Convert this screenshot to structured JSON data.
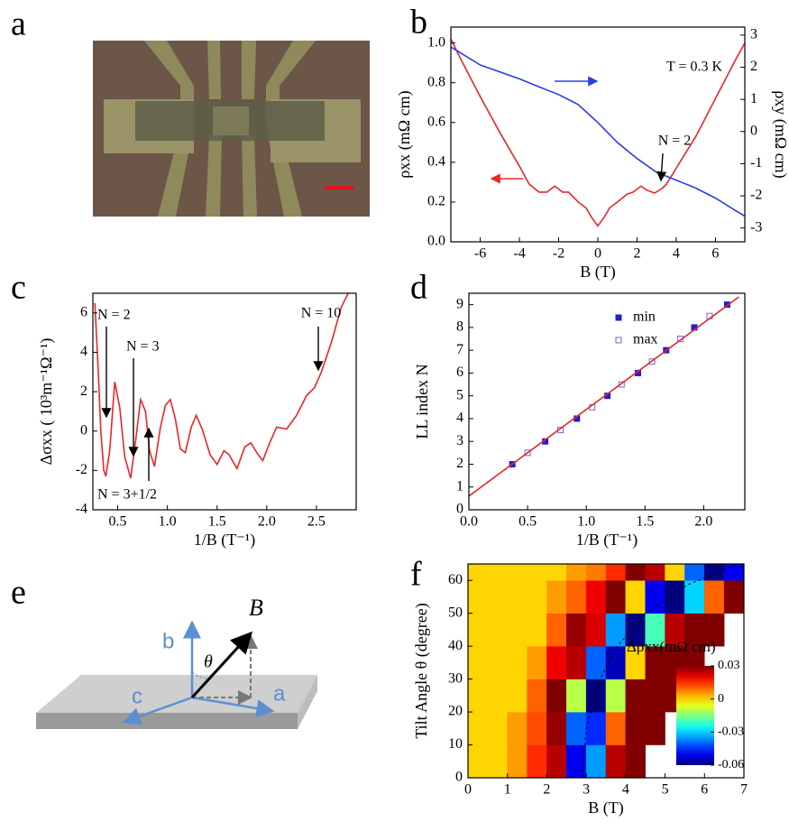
{
  "image_panel": {
    "panel": "a"
  },
  "diagram": {
    "panel": "e",
    "labels": {
      "b": "b",
      "B": "B",
      "theta": "θ",
      "c": "c",
      "a": "a"
    }
  },
  "chart_data": [
    {
      "type": "line",
      "panel": "b",
      "x_label": "B (T)",
      "y_label": "ρxx (mΩ cm)",
      "y2_label": "ρxy (mΩ cm)",
      "annotations": [
        "T = 0.3 K",
        "N = 2"
      ],
      "xlim": [
        -7.5,
        7.5
      ],
      "xticks": [
        -6,
        -4,
        -2,
        0,
        2,
        4,
        6
      ],
      "ylim": [
        0,
        1.08
      ],
      "yticks": [
        {
          "value": 0,
          "label": "0.0"
        },
        0.2,
        0.4,
        0.6,
        0.8,
        {
          "value": 1,
          "label": "1.0"
        }
      ],
      "y2lim": [
        -3.43,
        3.25
      ],
      "y2ticks": [
        -3,
        -2,
        -1,
        0,
        1,
        2,
        3
      ],
      "series": [
        {
          "color": "#e8262a",
          "x": [
            -7.5,
            -7,
            -6,
            -5,
            -4,
            -3.5,
            -3,
            -2.6,
            -2.2,
            -1.8,
            -1.5,
            -1,
            -0.6,
            -0.3,
            0,
            0.3,
            0.6,
            1,
            1.5,
            1.8,
            2.2,
            2.5,
            2.9,
            3.3,
            3.5,
            4,
            5,
            6,
            7,
            7.5
          ],
          "values": [
            1.02,
            0.92,
            0.73,
            0.55,
            0.38,
            0.29,
            0.25,
            0.25,
            0.28,
            0.25,
            0.25,
            0.2,
            0.17,
            0.12,
            0.08,
            0.12,
            0.17,
            0.2,
            0.24,
            0.25,
            0.28,
            0.26,
            0.245,
            0.27,
            0.29,
            0.37,
            0.53,
            0.72,
            0.91,
            1.0
          ]
        },
        {
          "color": "#2a3ee8",
          "axis": "y2",
          "x": [
            -7.5,
            -6,
            -4,
            -3,
            -2,
            -1,
            0,
            1,
            2,
            3,
            4,
            5,
            6,
            7,
            7.5
          ],
          "values": [
            2.63,
            2.07,
            1.64,
            1.39,
            1.15,
            0.84,
            0.28,
            -0.34,
            -0.84,
            -1.27,
            -1.51,
            -1.76,
            -2.07,
            -2.45,
            -2.63
          ]
        }
      ]
    },
    {
      "type": "line",
      "panel": "c",
      "x_label": "1/B (T⁻¹)",
      "y_label": "Δσxx ( 10³m⁻¹Ω⁻¹)",
      "annotations": [
        "N = 2",
        "N = 3",
        "N = 3+1/2",
        "N = 10"
      ],
      "xlim": [
        0.25,
        2.9
      ],
      "xticks": [
        0.5,
        {
          "value": 1,
          "label": "1.0"
        },
        1.5,
        {
          "value": 2,
          "label": "2.0"
        },
        2.5
      ],
      "ylim": [
        -4,
        7
      ],
      "yticks": [
        -4,
        -2,
        0,
        2,
        4,
        6
      ],
      "series": [
        {
          "color": "#e8262a",
          "x": [
            0.27,
            0.3,
            0.33,
            0.36,
            0.38,
            0.42,
            0.47,
            0.52,
            0.57,
            0.63,
            0.68,
            0.73,
            0.78,
            0.82,
            0.87,
            0.93,
            0.98,
            1.03,
            1.08,
            1.13,
            1.18,
            1.24,
            1.29,
            1.35,
            1.43,
            1.5,
            1.57,
            1.62,
            1.7,
            1.78,
            1.84,
            1.9,
            1.96,
            2.03,
            2.1,
            2.2,
            2.3,
            2.4,
            2.48,
            2.55,
            2.65,
            2.75,
            2.82
          ],
          "values": [
            6.5,
            3.5,
            0,
            -2.0,
            -2.3,
            -1,
            2.5,
            1.2,
            -1.3,
            -2.4,
            -0.5,
            1.6,
            1.0,
            -1.0,
            -1.8,
            0.2,
            1.3,
            1.6,
            0.6,
            -0.9,
            -1.1,
            0.2,
            0.8,
            0.1,
            -1.2,
            -1.7,
            -1.0,
            -1.2,
            -1.9,
            -0.8,
            -0.6,
            -1.1,
            -1.5,
            -0.6,
            0.2,
            0.1,
            0.8,
            1.8,
            2.2,
            3.0,
            4.5,
            6.3,
            7
          ]
        }
      ]
    },
    {
      "type": "scatter",
      "panel": "d",
      "x_label": "1/B (T⁻¹)",
      "y_label": "LL index N",
      "xlim": [
        0,
        2.35
      ],
      "xticks": [
        {
          "value": 0,
          "label": "0.0"
        },
        0.5,
        {
          "value": 1,
          "label": "1.0"
        },
        1.5,
        {
          "value": 2,
          "label": "2.0"
        }
      ],
      "ylim": [
        0,
        9.5
      ],
      "yticks": [
        0,
        1,
        2,
        3,
        4,
        5,
        6,
        7,
        8,
        9
      ],
      "series": [
        {
          "name": "min",
          "color": "#1f1fd0",
          "marker": "filled",
          "x": [
            0.37,
            0.65,
            0.92,
            1.18,
            1.44,
            1.68,
            1.92,
            2.2
          ],
          "values": [
            2,
            3,
            4,
            5,
            6,
            7,
            8,
            9
          ]
        },
        {
          "name": "max",
          "color": "#6a6ad8",
          "marker": "open",
          "x": [
            0.5,
            0.78,
            1.05,
            1.3,
            1.56,
            1.8,
            2.05
          ],
          "values": [
            2.5,
            3.5,
            4.5,
            5.5,
            6.5,
            7.5,
            8.5
          ]
        },
        {
          "color": "#e8262a",
          "type": "line",
          "x": [
            0,
            2.3
          ],
          "values": [
            0.6,
            9.34
          ]
        }
      ]
    },
    {
      "type": "heatmap",
      "panel": "f",
      "x_label": "B (T)",
      "y_label": "Tilt Angle θ (degree)",
      "colorbar_label": "Δρxx(mΩ cm)",
      "xlim": [
        0,
        7
      ],
      "xticks": [
        0,
        1,
        2,
        3,
        4,
        5,
        6,
        7
      ],
      "ylim": [
        0,
        65
      ],
      "yticks": [
        0,
        10,
        20,
        30,
        40,
        50,
        60
      ],
      "xbins": [
        0,
        0.5,
        1,
        1.5,
        2,
        2.5,
        3,
        3.5,
        4,
        4.5,
        5,
        5.5,
        6,
        6.5,
        7
      ],
      "ybins": [
        0,
        10,
        20,
        30,
        40,
        50,
        60,
        65
      ],
      "zlim": [
        -0.06,
        0.03
      ],
      "zticks": [
        0.03,
        0,
        -0.03,
        -0.06
      ],
      "z": [
        [
          0,
          0,
          0.005,
          0.015,
          0.025,
          -0.05,
          -0.035,
          0.025,
          0.03,
          null,
          null,
          null,
          null,
          null
        ],
        [
          0,
          0,
          0.005,
          0.012,
          0.028,
          -0.04,
          -0.045,
          0.01,
          0.03,
          0.03,
          null,
          null,
          null,
          null
        ],
        [
          0,
          0,
          0,
          0.01,
          0.03,
          -0.01,
          -0.06,
          -0.01,
          0.03,
          0.03,
          0.03,
          null,
          null,
          null
        ],
        [
          0,
          0,
          0,
          0.005,
          0.02,
          0.025,
          -0.04,
          -0.055,
          0,
          0.03,
          0.03,
          0.03,
          null,
          null
        ],
        [
          0,
          0,
          0,
          0,
          0.01,
          0.028,
          0.022,
          -0.035,
          -0.06,
          -0.02,
          0.025,
          0.03,
          0.03,
          null
        ],
        [
          0,
          0,
          0,
          0,
          0.005,
          0.01,
          0.02,
          0.03,
          0,
          -0.05,
          -0.06,
          -0.03,
          0.01,
          0.03
        ],
        [
          0,
          0,
          0,
          0,
          0,
          0.005,
          0.008,
          0.015,
          0.03,
          0.025,
          0,
          -0.04,
          -0.06,
          -0.05
        ]
      ],
      "curve": {
        "x": [
          2.9,
          3.0,
          3.35,
          3.79,
          4.5,
          5.56,
          6.86
        ],
        "y": [
          0,
          15,
          30,
          40,
          50,
          58.6,
          65
        ]
      }
    }
  ]
}
